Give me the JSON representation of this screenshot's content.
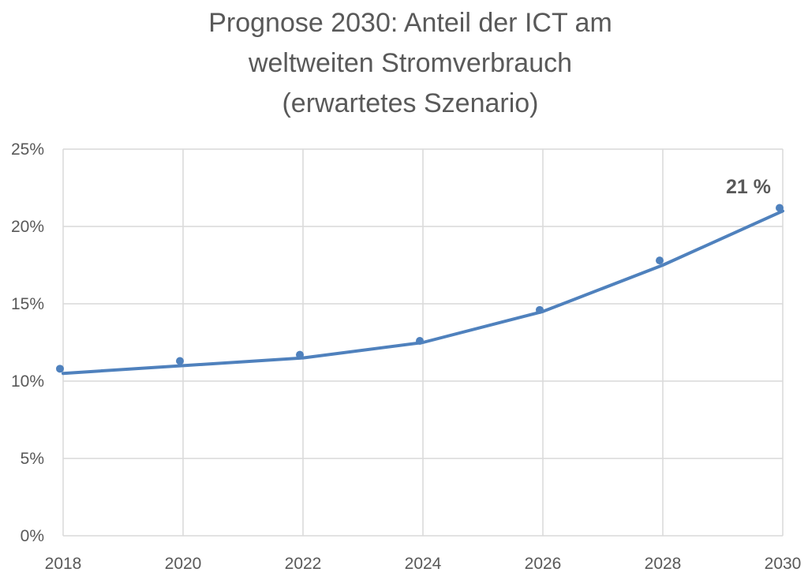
{
  "chart_data": {
    "type": "line",
    "title_lines": [
      "Prognose 2030: Anteil der ICT am",
      "weltweiten Stromverbrauch",
      "(erwartetes Szenario)"
    ],
    "x": [
      "2018",
      "2020",
      "2022",
      "2024",
      "2026",
      "2028",
      "2030"
    ],
    "series": [
      {
        "kind": "trend-line",
        "values": [
          10.5,
          11.0,
          11.5,
          12.5,
          14.5,
          17.5,
          21.0
        ],
        "color": "#4f81bd"
      },
      {
        "kind": "markers",
        "values": [
          10.8,
          11.3,
          11.7,
          12.6,
          14.6,
          17.8,
          21.2
        ],
        "color": "#4f81bd"
      }
    ],
    "ylim": [
      0,
      25
    ],
    "yticks": [
      "0%",
      "5%",
      "10%",
      "15%",
      "20%",
      "25%"
    ],
    "ytick_values": [
      0,
      5,
      10,
      15,
      20,
      25
    ],
    "grid": true,
    "annotations": [
      {
        "text": "21 %",
        "x": "2030"
      }
    ]
  }
}
